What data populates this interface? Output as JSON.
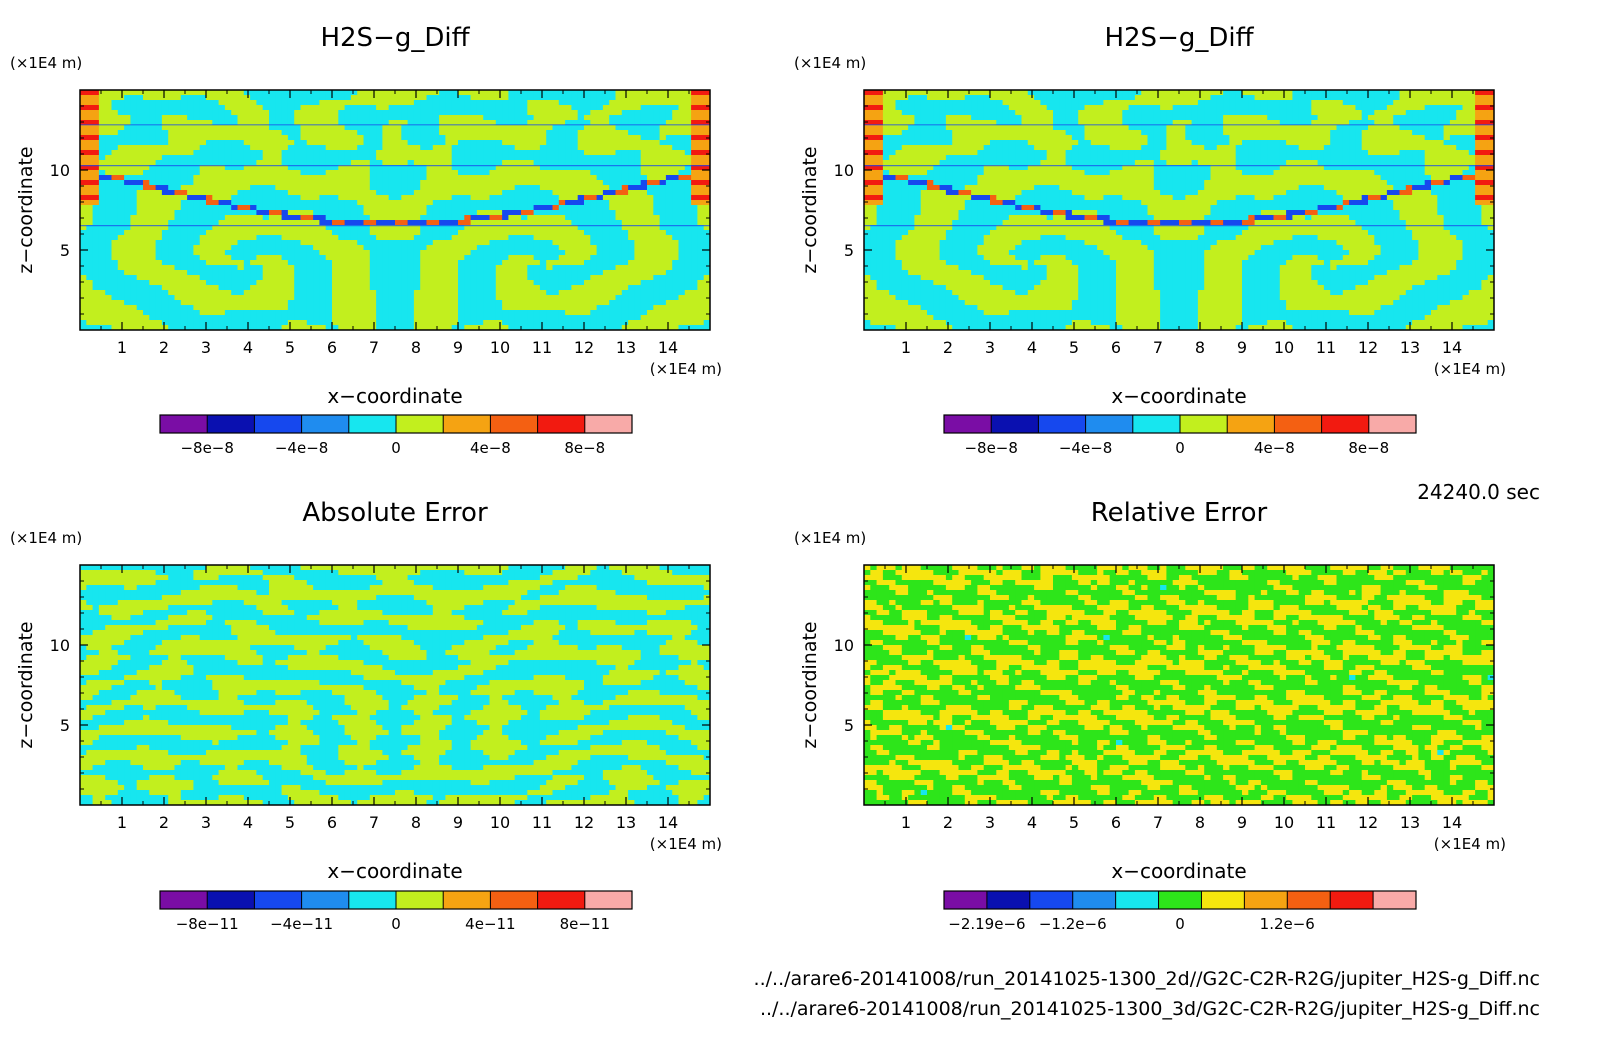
{
  "chart_data": [
    {
      "type": "heatmap",
      "title": "H2S−g_Diff",
      "xlabel": "x−coordinate",
      "ylabel": "z−coordinate",
      "x_unit": "(×1E4 m)",
      "y_unit": "(×1E4 m)",
      "xlim": [
        0,
        15
      ],
      "ylim": [
        0,
        15
      ],
      "x_ticks": [
        "1",
        "2",
        "3",
        "4",
        "5",
        "6",
        "7",
        "8",
        "9",
        "10",
        "11",
        "12",
        "13",
        "14"
      ],
      "y_ticks": [
        "5",
        "10"
      ],
      "pattern": "vortex",
      "colorbar": {
        "colors": [
          "#7a0da5",
          "#0a10b0",
          "#1648ee",
          "#1f8cef",
          "#17e6ef",
          "#c2ef1e",
          "#f5a312",
          "#f46012",
          "#f21a10",
          "#f8aaa8"
        ],
        "tick_labels": [
          "−8e−8",
          "−4e−8",
          "0",
          "4e−8",
          "8e−8"
        ]
      }
    },
    {
      "type": "heatmap",
      "title": "H2S−g_Diff",
      "xlabel": "x−coordinate",
      "ylabel": "z−coordinate",
      "x_unit": "(×1E4 m)",
      "y_unit": "(×1E4 m)",
      "xlim": [
        0,
        15
      ],
      "ylim": [
        0,
        15
      ],
      "x_ticks": [
        "1",
        "2",
        "3",
        "4",
        "5",
        "6",
        "7",
        "8",
        "9",
        "10",
        "11",
        "12",
        "13",
        "14"
      ],
      "y_ticks": [
        "5",
        "10"
      ],
      "pattern": "vortex",
      "colorbar": {
        "colors": [
          "#7a0da5",
          "#0a10b0",
          "#1648ee",
          "#1f8cef",
          "#17e6ef",
          "#c2ef1e",
          "#f5a312",
          "#f46012",
          "#f21a10",
          "#f8aaa8"
        ],
        "tick_labels": [
          "−8e−8",
          "−4e−8",
          "0",
          "4e−8",
          "8e−8"
        ]
      }
    },
    {
      "type": "heatmap",
      "title": "Absolute Error",
      "xlabel": "x−coordinate",
      "ylabel": "z−coordinate",
      "x_unit": "(×1E4 m)",
      "y_unit": "(×1E4 m)",
      "xlim": [
        0,
        15
      ],
      "ylim": [
        0,
        15
      ],
      "x_ticks": [
        "1",
        "2",
        "3",
        "4",
        "5",
        "6",
        "7",
        "8",
        "9",
        "10",
        "11",
        "12",
        "13",
        "14"
      ],
      "y_ticks": [
        "5",
        "10"
      ],
      "pattern": "stripes",
      "colorbar": {
        "colors": [
          "#7a0da5",
          "#0a10b0",
          "#1648ee",
          "#1f8cef",
          "#17e6ef",
          "#c2ef1e",
          "#f5a312",
          "#f46012",
          "#f21a10",
          "#f8aaa8"
        ],
        "tick_labels": [
          "−8e−11",
          "−4e−11",
          "0",
          "4e−11",
          "8e−11"
        ]
      }
    },
    {
      "type": "heatmap",
      "title": "Relative Error",
      "xlabel": "x−coordinate",
      "ylabel": "z−coordinate",
      "x_unit": "(×1E4 m)",
      "y_unit": "(×1E4 m)",
      "xlim": [
        0,
        15
      ],
      "ylim": [
        0,
        15
      ],
      "x_ticks": [
        "1",
        "2",
        "3",
        "4",
        "5",
        "6",
        "7",
        "8",
        "9",
        "10",
        "11",
        "12",
        "13",
        "14"
      ],
      "y_ticks": [
        "5",
        "10"
      ],
      "pattern": "noise",
      "colorbar": {
        "colors": [
          "#7a0da5",
          "#0a10b0",
          "#1648ee",
          "#1f8cef",
          "#17e6ef",
          "#2de51a",
          "#f5e60e",
          "#f5a312",
          "#f46012",
          "#f21a10",
          "#f8aaa8"
        ],
        "tick_labels": [
          "−2.19e−6",
          "−1.2e−6",
          "0",
          "1.2e−6"
        ]
      }
    }
  ],
  "time_label": "24240.0 sec",
  "file_paths": [
    "../../arare6-20141008/run_20141025-1300_2d//G2C-C2R-R2G/jupiter_H2S-g_Diff.nc",
    "../../arare6-20141008/run_20141025-1300_3d/G2C-C2R-R2G/jupiter_H2S-g_Diff.nc"
  ]
}
